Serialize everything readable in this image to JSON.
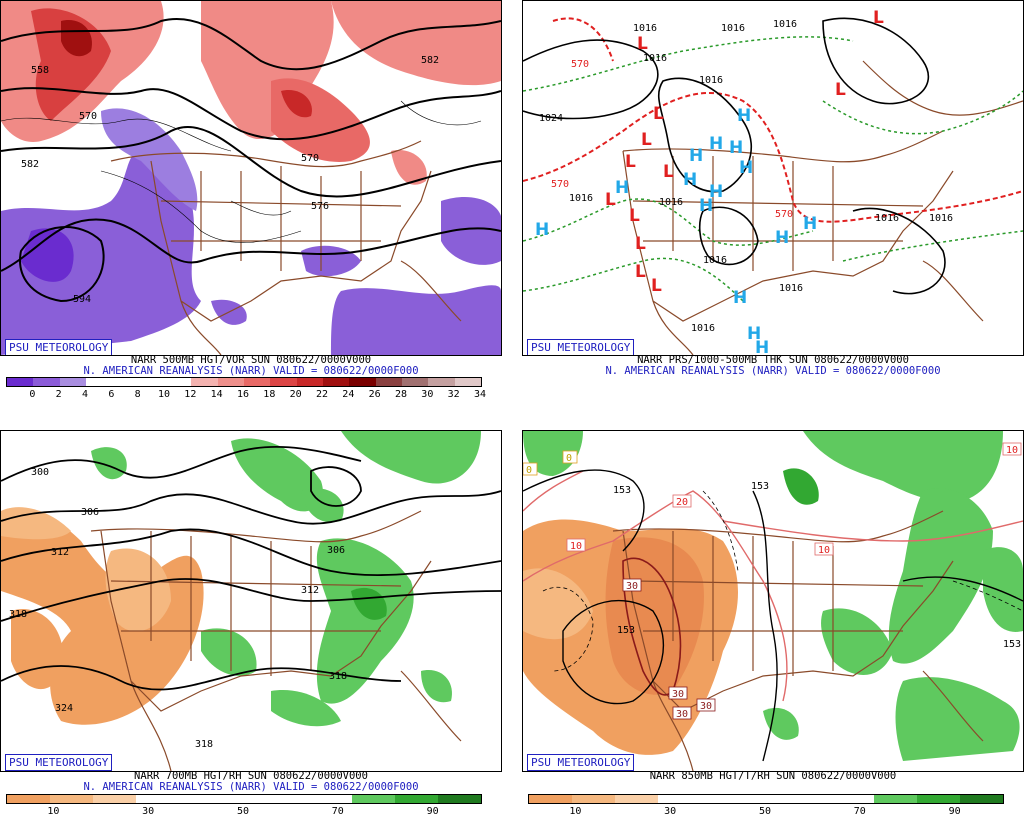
{
  "panels": [
    {
      "id": "vor500",
      "badge": "PSU METEOROLOGY",
      "caption1": "NARR 500MB HGT/VOR SUN 080622/0000V000",
      "caption2": "N. AMERICAN REANALYSIS (NARR) VALID = 080622/0000F000",
      "colorbar": {
        "colors": [
          "#6a2ccf",
          "#8b5bd8",
          "#a98ee0",
          "#ffffff",
          "#ffffff",
          "#ffffff",
          "#ffffff",
          "#f4b3b0",
          "#ee8f8b",
          "#e86966",
          "#dc4545",
          "#c82828",
          "#a01010",
          "#7a0000",
          "#8a4040",
          "#a07070",
          "#c4a0a0",
          "#e0c8c8"
        ],
        "labels": [
          "0",
          "2",
          "4",
          "6",
          "8",
          "10",
          "12",
          "14",
          "16",
          "18",
          "20",
          "22",
          "24",
          "26",
          "28",
          "30",
          "32",
          "34"
        ]
      },
      "contour_labels": [
        "558",
        "570",
        "582",
        "570",
        "594",
        "576",
        "582"
      ]
    },
    {
      "id": "prs",
      "badge": "PSU METEOROLOGY",
      "caption1": "NARR PRS/1000-500MB THK SUN 080622/0000V000",
      "caption2": "N. AMERICAN REANALYSIS (NARR) VALID = 080622/0000F000",
      "contour_labels": [
        "1016",
        "1016",
        "1016",
        "1016",
        "1024",
        "570",
        "1016",
        "1016",
        "1016",
        "570",
        "1016",
        "1016",
        "1016",
        "570",
        "1016",
        "1016"
      ],
      "high_letter": "H",
      "low_letter": "L"
    },
    {
      "id": "rh700",
      "badge": "PSU METEOROLOGY",
      "caption1": "NARR 700MB HGT/RH SUN 080622/0000V000",
      "caption2": "N. AMERICAN REANALYSIS (NARR) VALID = 080622/0000F000",
      "colorbar": {
        "colors": [
          "#f0a060",
          "#f5b880",
          "#fad0a8",
          "#ffffff",
          "#ffffff",
          "#ffffff",
          "#ffffff",
          "#ffffff",
          "#5fc95f",
          "#32a832",
          "#1f7a1f"
        ],
        "labels": [
          "10",
          "30",
          "50",
          "70",
          "90"
        ]
      },
      "contour_labels": [
        "300",
        "306",
        "312",
        "318",
        "324",
        "306",
        "312",
        "318",
        "318"
      ]
    },
    {
      "id": "rh850",
      "badge": "PSU METEOROLOGY",
      "caption1": "NARR 850MB HGT/T/RH SUN 080622/0000V000",
      "colorbar": {
        "colors": [
          "#f0a060",
          "#f5b880",
          "#fad0a8",
          "#ffffff",
          "#ffffff",
          "#ffffff",
          "#ffffff",
          "#ffffff",
          "#5fc95f",
          "#32a832",
          "#1f7a1f"
        ],
        "labels": [
          "10",
          "30",
          "50",
          "70",
          "90"
        ]
      },
      "contour_labels": [
        "153",
        "153",
        "153",
        "153",
        "0",
        "0",
        "10",
        "10",
        "10",
        "20",
        "30",
        "30",
        "30",
        "30"
      ]
    }
  ],
  "colors": {
    "border_brown": "#8a4a2a",
    "contour_black": "#000000",
    "high_blue": "#22a8e8",
    "low_red": "#e02020",
    "thk_red": "#e02020",
    "thk_green": "#2a9a2a",
    "badge_blue": "#2020c0"
  }
}
